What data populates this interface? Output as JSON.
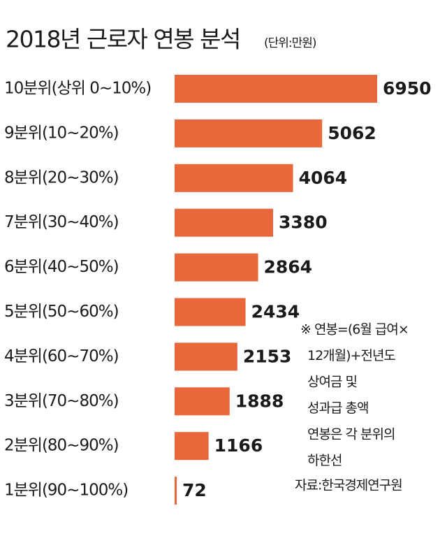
{
  "chart_data": {
    "type": "bar",
    "orientation": "horizontal",
    "title": "2018년 근로자 연봉 분석",
    "subtitle": "(단위:만원)",
    "categories": [
      "10분위(상위 0~10%)",
      "9분위(10~20%)",
      "8분위(20~30%)",
      "7분위(30~40%)",
      "6분위(40~50%)",
      "5분위(50~60%)",
      "4분위(60~70%)",
      "3분위(70~80%)",
      "2분위(80~90%)",
      "1분위(90~100%)"
    ],
    "values": [
      6950,
      5062,
      4064,
      3380,
      2864,
      2434,
      2153,
      1888,
      1166,
      72
    ],
    "color": "#e8683c",
    "notes": [
      "※ 연봉=(6월 급여×",
      "12개월)+전년도",
      "상여금 및",
      "성과급 총액",
      "연봉은 각 분위의",
      "하한선"
    ],
    "source": "자료:한국경제연구원"
  }
}
